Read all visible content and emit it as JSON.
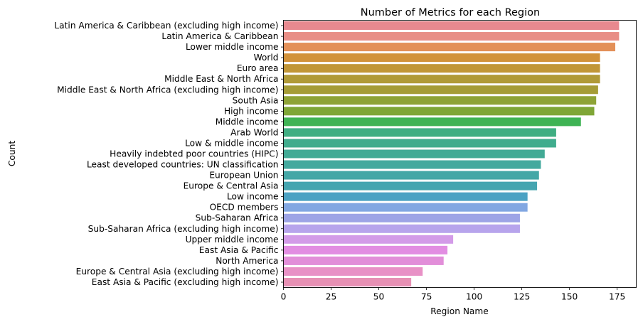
{
  "chart_data": {
    "type": "bar",
    "orientation": "horizontal",
    "title": "Number of Metrics for each Region",
    "xlabel": "Region Name",
    "ylabel": "Count",
    "xlim": [
      0,
      185
    ],
    "xticks": [
      0,
      25,
      50,
      75,
      100,
      125,
      150,
      175
    ],
    "grid": false,
    "legend": "none",
    "categories": [
      "Latin America & Caribbean (excluding high income)",
      "Latin America & Caribbean",
      "Lower middle income",
      "World",
      "Euro area",
      "Middle East & North Africa",
      "Middle East & North Africa (excluding high income)",
      "South Asia",
      "High income",
      "Middle income",
      "Arab World",
      "Low & middle income",
      "Heavily indebted poor countries (HIPC)",
      "Least developed countries: UN classification",
      "European Union",
      "Europe & Central Asia",
      "Low income",
      "OECD members",
      "Sub-Saharan Africa",
      "Sub-Saharan Africa (excluding high income)",
      "Upper middle income",
      "East Asia & Pacific",
      "North America",
      "Europe & Central Asia (excluding high income)",
      "East Asia & Pacific (excluding high income)"
    ],
    "values": [
      176,
      176,
      174,
      166,
      166,
      166,
      165,
      164,
      163,
      156,
      143,
      143,
      137,
      135,
      134,
      133,
      128,
      128,
      124,
      124,
      89,
      86,
      84,
      73,
      67
    ],
    "colors": [
      "#e8898f",
      "#e88e86",
      "#e39058",
      "#d2923a",
      "#c19637",
      "#b09a37",
      "#a59c36",
      "#8ea336",
      "#7fa636",
      "#3fb354",
      "#3fae82",
      "#40ac8d",
      "#42aa95",
      "#43a99e",
      "#44a7a6",
      "#45a5b0",
      "#4ba2c3",
      "#82a7e2",
      "#9da4e6",
      "#b7a4ec",
      "#d39be8",
      "#e28de2",
      "#e28ed9",
      "#e891c6",
      "#e790b4"
    ]
  }
}
